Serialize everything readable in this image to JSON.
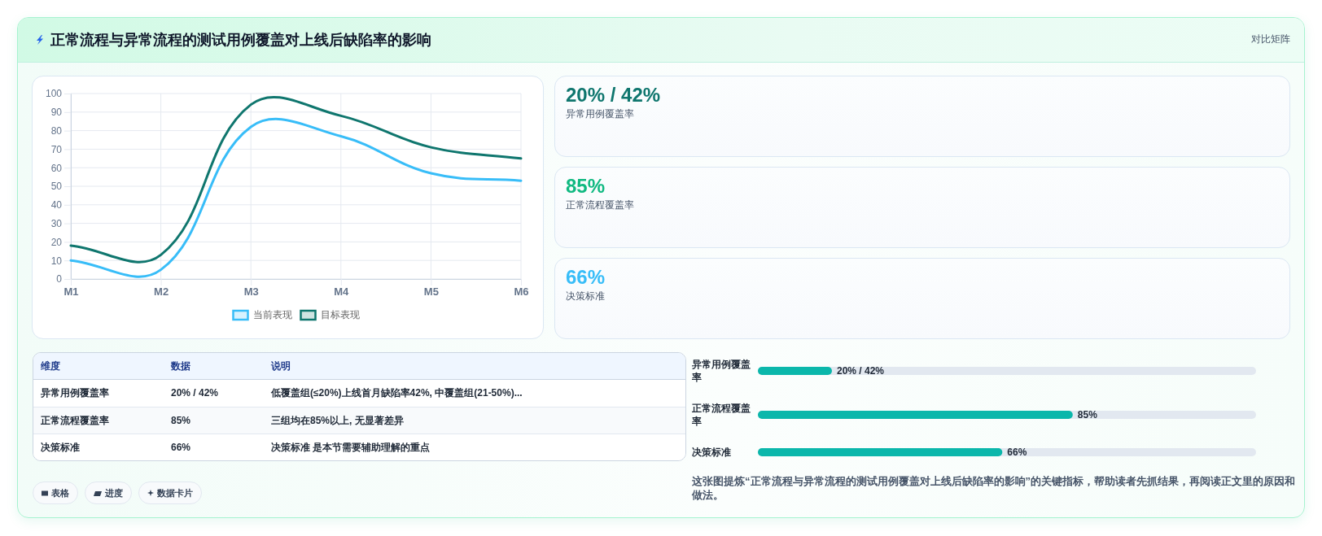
{
  "chart_data": [
    {
      "type": "other",
      "title": "正常流程与异常流程的测试用例覆盖对上线后缺陷率的影响",
      "subtitle": "对比矩阵"
    },
    {
      "type": "line",
      "categories": [
        "M1",
        "M2",
        "M3",
        "M4",
        "M5",
        "M6"
      ],
      "series": [
        {
          "name": "当前表现",
          "color": "#38bdf8",
          "values": [
            10,
            5,
            82,
            77,
            57,
            53
          ]
        },
        {
          "name": "目标表现",
          "color": "#0f766e",
          "values": [
            18,
            13,
            94,
            88,
            71,
            65
          ]
        }
      ],
      "ylim": [
        0,
        100
      ],
      "yticks": [
        0,
        10,
        20,
        30,
        40,
        50,
        60,
        70,
        80,
        90,
        100
      ],
      "grid": true,
      "legend": "bottom"
    },
    {
      "type": "other",
      "categories": [
        "异常用例覆盖率",
        "正常流程覆盖率",
        "决策标准"
      ],
      "value_labels": [
        "20% / 42%",
        "85%",
        "66%"
      ]
    },
    {
      "type": "other",
      "ylabel": "维度",
      "categories": [
        "数据",
        "说明"
      ],
      "y_categories": [
        "异常用例覆盖率",
        "正常流程覆盖率",
        "决策标准"
      ],
      "cell_labels": [
        [
          "20% / 42%",
          "低覆盖组(≤20%)上线首月缺陷率42%, 中覆盖组(21-50%)..."
        ],
        [
          "85%",
          "三组均在85%以上, 无显著差异"
        ],
        [
          "66%",
          "决策标准 是本节需要辅助理解的重点"
        ]
      ],
      "annotations": [
        "表格",
        "进度",
        "数据卡片"
      ]
    },
    {
      "type": "bar",
      "orientation": "horizontal",
      "categories": [
        "异常用例覆盖率",
        "正常流程覆盖率",
        "决策标准"
      ],
      "values": [
        20,
        85,
        66
      ],
      "value_labels": [
        "20% / 42%",
        "85%",
        "66%"
      ],
      "color": "#0bb7ab",
      "annotations": [
        "这张图提炼“正常流程与异常流程的测试用例覆盖对上线后缺陷率的影响”的关键指标，帮助读者先抓结果，再阅读正文里的原因和做法。"
      ]
    }
  ]
}
